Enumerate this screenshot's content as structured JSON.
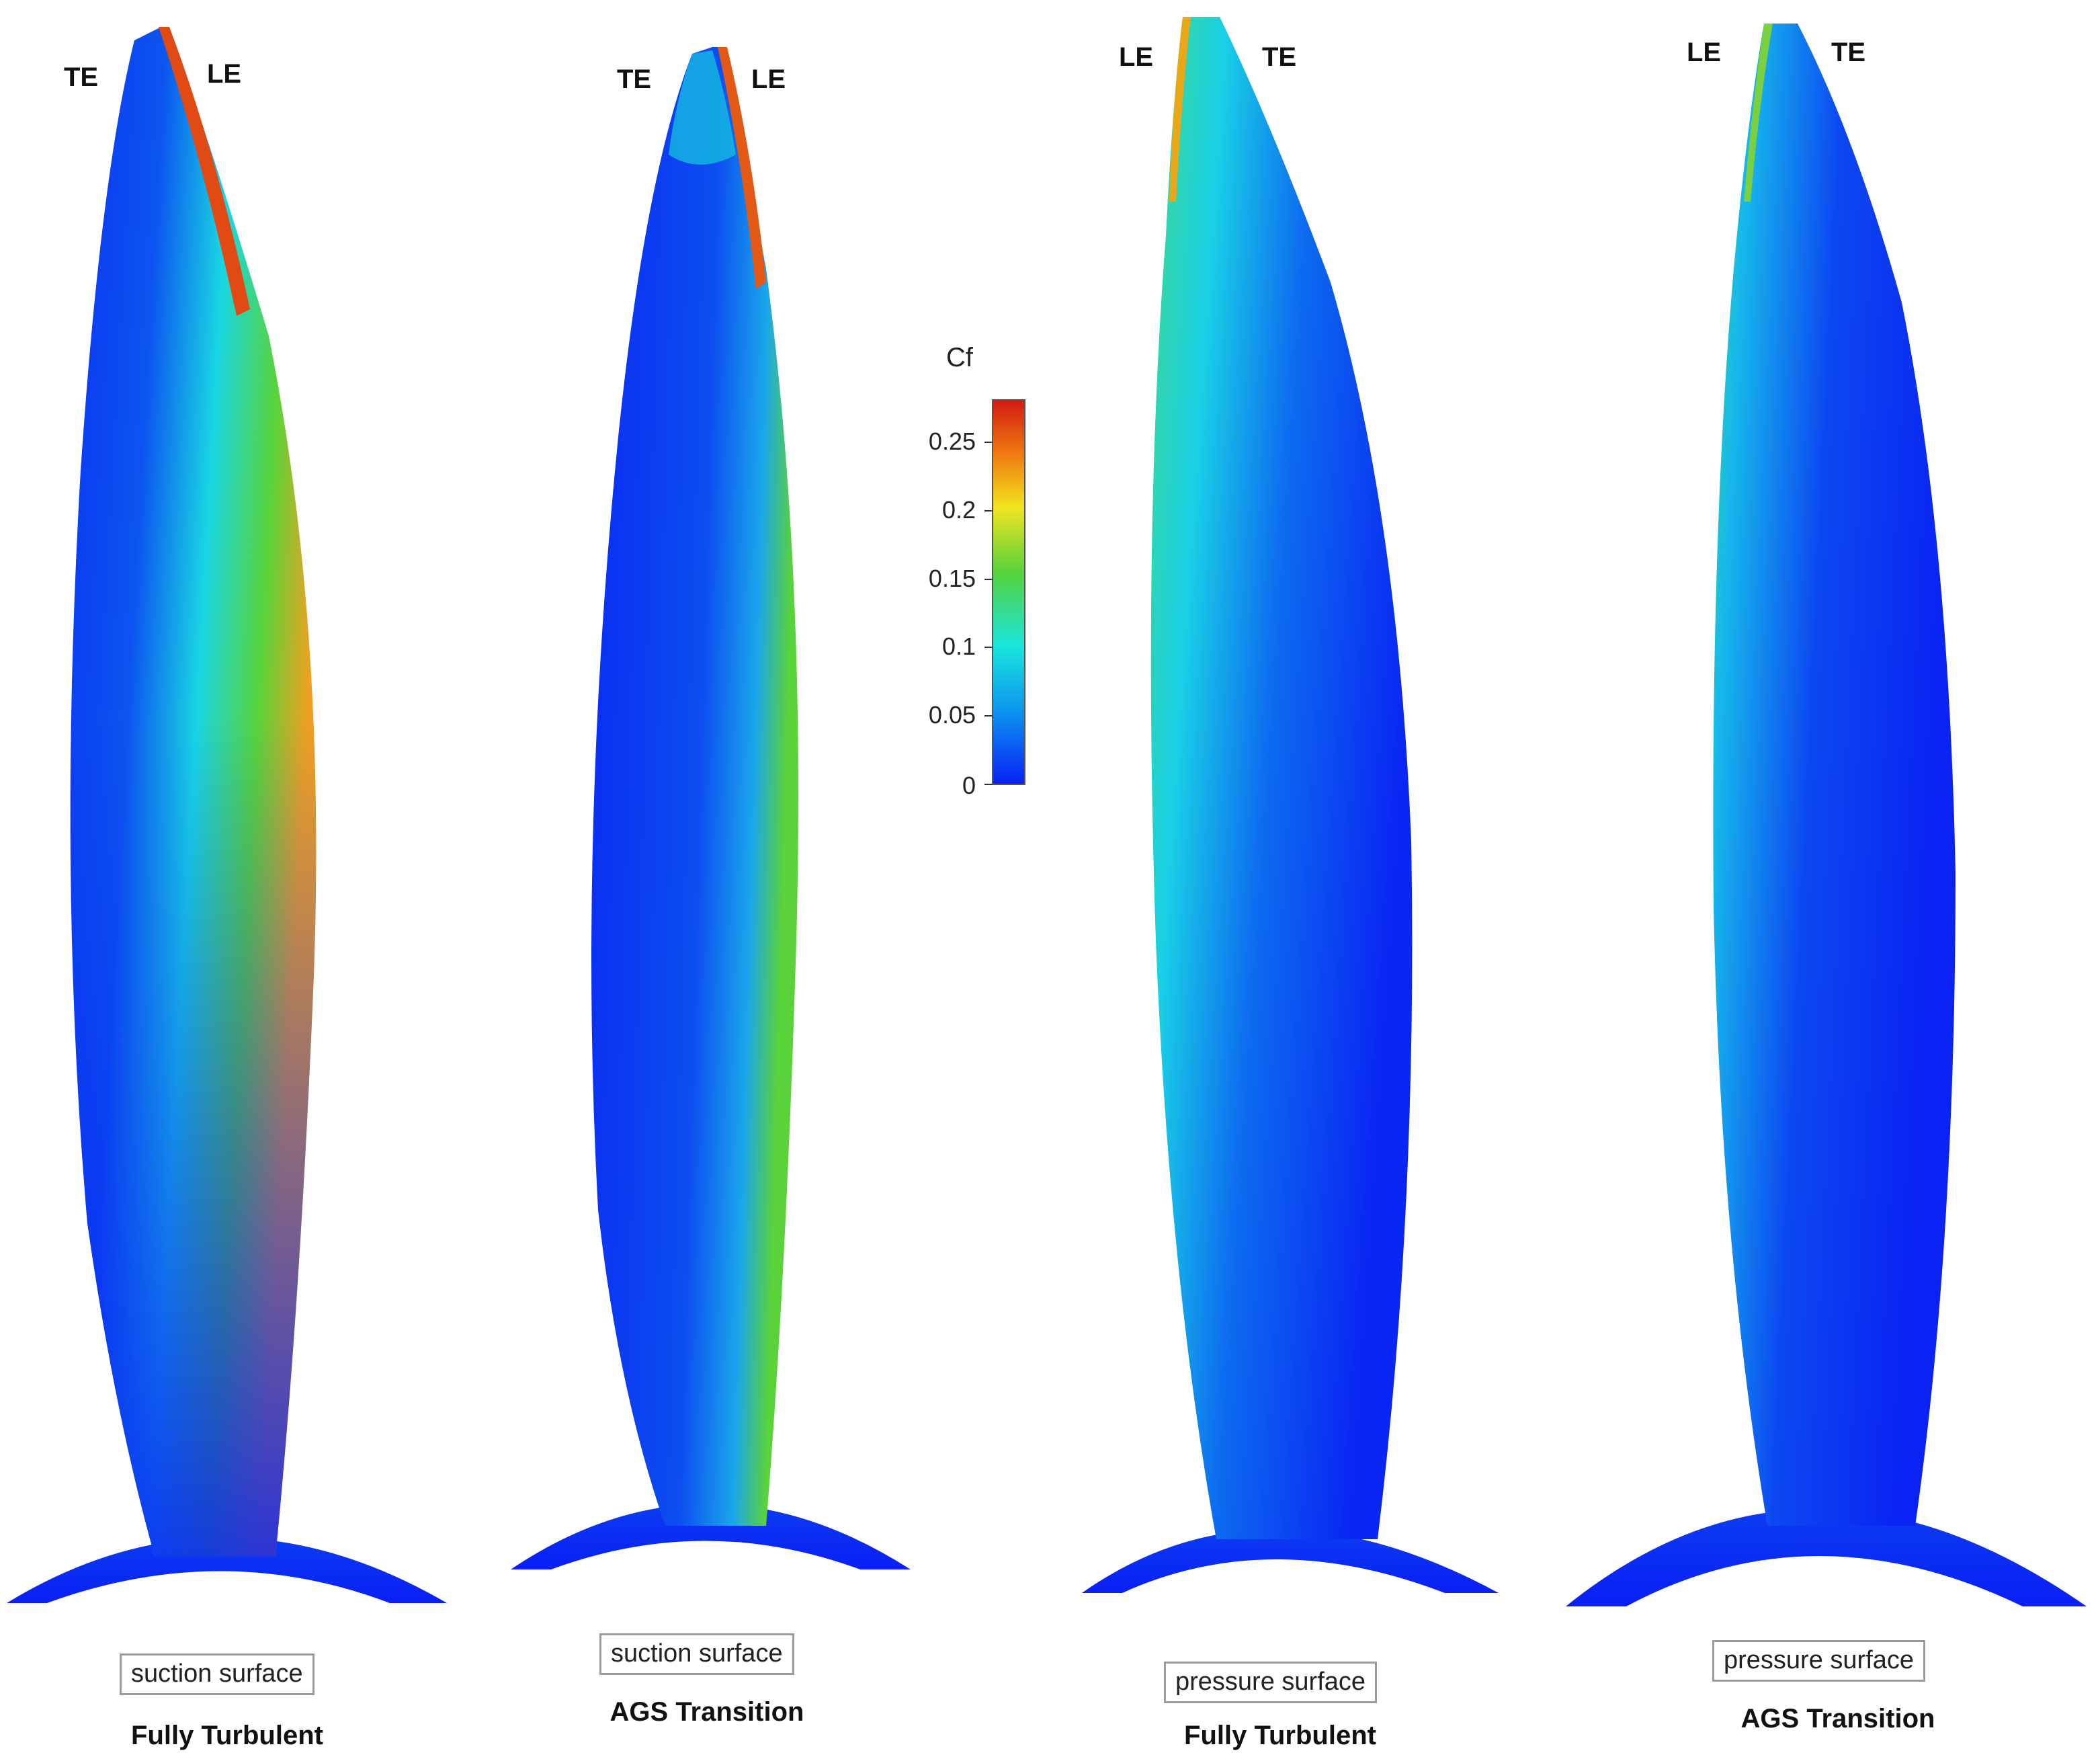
{
  "colorbar": {
    "title": "Cf",
    "ticks": [
      "0.25",
      "0.2",
      "0.15",
      "0.1",
      "0.05",
      "0"
    ],
    "colors": [
      "#d21a10",
      "#f07a10",
      "#f2e420",
      "#55d23c",
      "#19e6dd",
      "#0c8ff0",
      "#0a1ff5"
    ]
  },
  "panels": [
    {
      "id": "p1",
      "left_label": "TE",
      "right_label": "LE",
      "surface": "suction surface",
      "case": "Fully Turbulent"
    },
    {
      "id": "p2",
      "left_label": "TE",
      "right_label": "LE",
      "surface": "suction surface",
      "case": "AGS Transition"
    },
    {
      "id": "p3",
      "left_label": "LE",
      "right_label": "TE",
      "surface": "pressure surface",
      "case": "Fully Turbulent"
    },
    {
      "id": "p4",
      "left_label": "LE",
      "right_label": "TE",
      "surface": "pressure surface",
      "case": "AGS Transition"
    }
  ]
}
